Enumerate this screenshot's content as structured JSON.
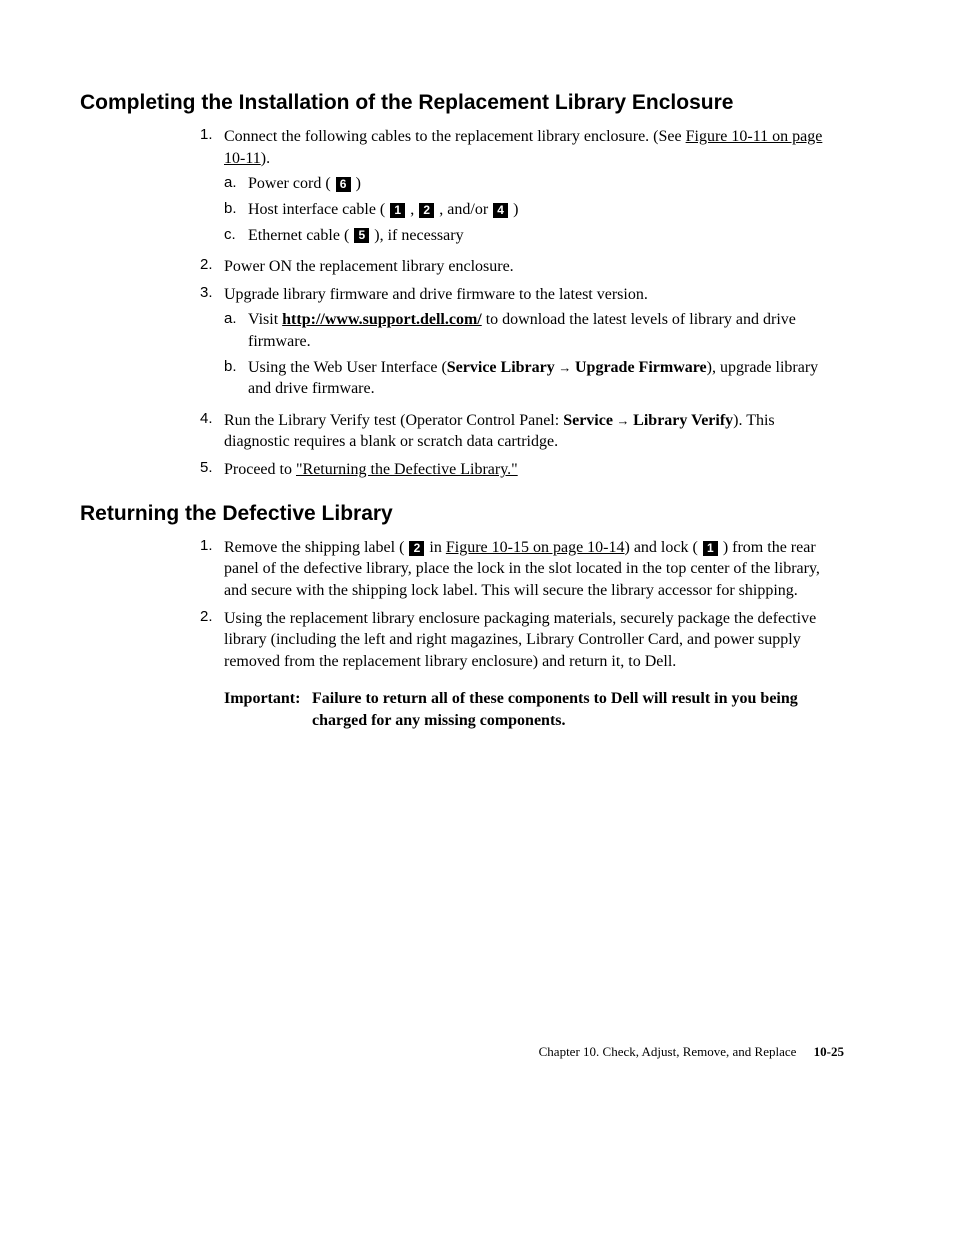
{
  "section1": {
    "title": "Completing the Installation of the Replacement Library Enclosure",
    "items": [
      {
        "num": "1.",
        "text_pre": "Connect the following cables to the replacement library enclosure. (See ",
        "link": "Figure 10-11 on page 10-11",
        "text_post": ").",
        "sub": [
          {
            "num": "a.",
            "pre": "Power cord ( ",
            "co": [
              "6"
            ],
            "post": " )"
          },
          {
            "num": "b.",
            "pre": "Host interface cable ( ",
            "co": [
              "1",
              "2"
            ],
            "mid": " , and/or ",
            "co2": [
              "4"
            ],
            "post": " )"
          },
          {
            "num": "c.",
            "pre": "Ethernet cable ( ",
            "co": [
              "5"
            ],
            "post": " ), if necessary"
          }
        ]
      },
      {
        "num": "2.",
        "text": "Power ON the replacement library enclosure."
      },
      {
        "num": "3.",
        "text": "Upgrade library firmware and drive firmware to the latest version.",
        "sub": [
          {
            "num": "a.",
            "pre": "Visit ",
            "boldlink": "http://www.support.dell.com/",
            "post": " to download the latest levels of library and drive firmware."
          },
          {
            "num": "b.",
            "pre": "Using the Web User Interface (",
            "bold1": "Service Library",
            "arrow": " → ",
            "bold2": "Upgrade Firmware",
            "post": "), upgrade library and drive firmware."
          }
        ]
      },
      {
        "num": "4.",
        "pre": "Run the Library Verify test (Operator Control Panel: ",
        "bold1": "Service",
        "arrow": " → ",
        "bold2": "Library Verify",
        "post": "). This diagnostic requires a blank or scratch data cartridge."
      },
      {
        "num": "5.",
        "pre": "Proceed to ",
        "link": "\"Returning the Defective Library.\""
      }
    ]
  },
  "section2": {
    "title": "Returning the Defective Library",
    "items": [
      {
        "num": "1.",
        "pre": "Remove the shipping label ( ",
        "co1": "2",
        "mid1": " in ",
        "link": "Figure 10-15 on page 10-14",
        "mid2": ") and lock ( ",
        "co2": "1",
        "post": " ) from the rear panel of the defective library, place the lock in the slot located in the top center of the library, and secure with the shipping lock label. This will secure the library accessor for shipping."
      },
      {
        "num": "2.",
        "text": "Using the replacement library enclosure packaging materials, securely package the defective library (including the left and right magazines, Library Controller Card, and power supply removed from the replacement library enclosure) and return it, to Dell."
      }
    ],
    "important_label": "Important:",
    "important_text": "Failure to return all of these components to Dell will result in you being charged for any missing components"
  },
  "footer": {
    "chapter": "Chapter 10. Check, Adjust, Remove, and Replace",
    "page": "10-25"
  }
}
